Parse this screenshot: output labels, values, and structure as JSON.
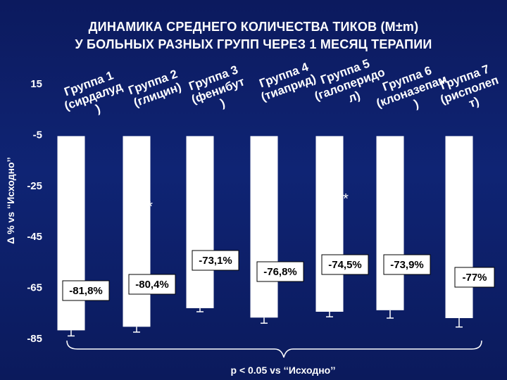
{
  "title_lines": [
    "ДИНАМИКА СРЕДНЕГО КОЛИЧЕСТВА ТИКОВ (M±m)",
    "У БОЛЬНЫХ РАЗНЫХ ГРУПП ЧЕРЕЗ 1 МЕСЯЦ ТЕРАПИИ"
  ],
  "chart_data": {
    "type": "bar",
    "title": "ДИНАМИКА СРЕДНЕГО КОЛИЧЕСТВА ТИКОВ (M±m) У БОЛЬНЫХ РАЗНЫХ ГРУПП ЧЕРЕЗ 1 МЕСЯЦ ТЕРАПИИ",
    "ylabel": "Δ % vs ‘‘Исходно’’",
    "ylim": [
      -85,
      15
    ],
    "yticks": [
      15,
      -5,
      -25,
      -45,
      -65,
      -85
    ],
    "categories": [
      [
        "Группа 1",
        "(сирдалуд",
        ")"
      ],
      [
        "Группа 2",
        "(глицин)"
      ],
      [
        "Группа 3",
        "(фенибут",
        ")"
      ],
      [
        "Группа 4",
        "(тиаприд)"
      ],
      [
        "Группа 5",
        "(галоперидо",
        "л)"
      ],
      [
        "Группа 6",
        "(клоназепам",
        ")"
      ],
      [
        "Группа 7",
        "(рисполеп",
        "т)"
      ]
    ],
    "values": [
      -81.8,
      -80.4,
      -73.1,
      -76.8,
      -74.5,
      -73.9,
      -77.0
    ],
    "value_labels": [
      "-81,8%",
      "-80,4%",
      "-73,1%",
      "-76,8%",
      "-74,5%",
      "-73,9%",
      "-77%"
    ],
    "error_low": [
      -84,
      -82.5,
      -74.5,
      -79,
      -76.5,
      -77,
      -80.5
    ],
    "significance": [
      false,
      true,
      false,
      false,
      true,
      false,
      false
    ],
    "significance_marker": "*",
    "footnote": "p < 0.05 vs ‘‘Исходно’’",
    "colors": {
      "bar": "#ffffff",
      "text": "#ffffff",
      "background": "#0f2474"
    }
  }
}
